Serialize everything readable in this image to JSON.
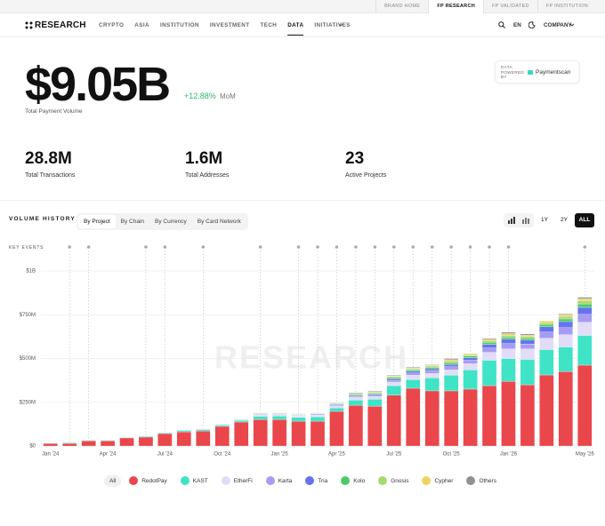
{
  "top_links": [
    "BRAND HOME",
    "FP RESEARCH",
    "FP VALIDATED",
    "FP INSTITUTION"
  ],
  "nav": {
    "logo": "RESEARCH",
    "items": [
      "CRYPTO",
      "ASIA",
      "INSTITUTION",
      "INVESTMENT",
      "TECH",
      "DATA",
      "INITIATIVES"
    ],
    "lang": "EN",
    "company": "COMPANY"
  },
  "hero": {
    "value": "$9.05B",
    "change": "+12.88%",
    "period": "MoM",
    "label": "Total Payment Volume",
    "powered": "DATA POWERED BY",
    "provider": "Paymentscan"
  },
  "stats": [
    {
      "value": "28.8M",
      "label": "Total Transactions"
    },
    {
      "value": "1.6M",
      "label": "Total Addresses"
    },
    {
      "value": "23",
      "label": "Active Projects"
    }
  ],
  "section": {
    "title": "VOLUME HISTORY",
    "tabs": [
      "By Project",
      "By Chain",
      "By Currency",
      "By Card Network"
    ],
    "ranges": [
      "1Y",
      "2Y",
      "ALL"
    ],
    "key_events": "KEY EVENTS",
    "watermark": "RESEARCH",
    "filter_all": "All"
  },
  "chart_data": {
    "type": "stacked_bar",
    "categories": [
      "Jan '24",
      null,
      null,
      "Apr '24",
      null,
      null,
      "Jul '24",
      null,
      null,
      "Oct '24",
      null,
      null,
      "Jan '25",
      null,
      null,
      "Apr '25",
      null,
      null,
      "Jul '25",
      null,
      null,
      "Oct '25",
      null,
      null,
      "Jan '26",
      null,
      null,
      null,
      "May '26"
    ],
    "ylim": [
      0,
      1000
    ],
    "yticks": [
      {
        "value": 0,
        "label": "$0"
      },
      {
        "value": 250,
        "label": "$250M"
      },
      {
        "value": 500,
        "label": "$500M"
      },
      {
        "value": 750,
        "label": "$750M"
      },
      {
        "value": 1000,
        "label": "$1B"
      }
    ],
    "grid": true,
    "series": [
      {
        "name": "RedotPay",
        "color": "#e9474b",
        "values": [
          15,
          15,
          30,
          30,
          46,
          51,
          71,
          81,
          86,
          112,
          137,
          152,
          152,
          142,
          142,
          198,
          233,
          228,
          290,
          330,
          315,
          315,
          325,
          345,
          370,
          350,
          406,
          426,
          462
        ]
      },
      {
        "name": "KAST",
        "color": "#3fe3c6",
        "values": [
          2,
          4,
          3,
          3,
          3,
          5,
          5,
          8,
          8,
          8,
          10,
          18,
          20,
          22,
          25,
          20,
          30,
          40,
          55,
          50,
          75,
          90,
          110,
          145,
          130,
          145,
          145,
          140,
          170
        ]
      },
      {
        "name": "EtherFi",
        "color": "#e2dcf7",
        "values": [
          1,
          2,
          1,
          1,
          1,
          2,
          2,
          3,
          3,
          3,
          4,
          8,
          8,
          8,
          10,
          12,
          14,
          15,
          20,
          25,
          25,
          30,
          35,
          45,
          55,
          60,
          65,
          70,
          75
        ]
      },
      {
        "name": "Karta",
        "color": "#a89cf2",
        "values": [
          0,
          1,
          0,
          0,
          0,
          0,
          1,
          1,
          1,
          1,
          2,
          3,
          3,
          3,
          4,
          5,
          6,
          8,
          10,
          12,
          15,
          18,
          20,
          25,
          30,
          28,
          35,
          40,
          45
        ]
      },
      {
        "name": "Tria",
        "color": "#6673ee",
        "values": [
          0,
          0,
          0,
          0,
          0,
          0,
          0,
          1,
          1,
          1,
          1,
          2,
          2,
          2,
          3,
          4,
          5,
          5,
          8,
          10,
          10,
          12,
          14,
          20,
          25,
          22,
          30,
          35,
          40
        ]
      },
      {
        "name": "Kolo",
        "color": "#4cc96b",
        "values": [
          1,
          1,
          1,
          1,
          0,
          1,
          1,
          1,
          1,
          1,
          2,
          3,
          3,
          3,
          3,
          4,
          5,
          6,
          8,
          8,
          9,
          10,
          10,
          12,
          12,
          12,
          14,
          15,
          20
        ]
      },
      {
        "name": "Gnosis",
        "color": "#a7d96f",
        "values": [
          1,
          1,
          0,
          0,
          0,
          1,
          0,
          0,
          0,
          0,
          1,
          2,
          1,
          2,
          1,
          3,
          5,
          5,
          6,
          6,
          8,
          10,
          8,
          10,
          10,
          8,
          10,
          14,
          18
        ]
      },
      {
        "name": "Cypher",
        "color": "#f0d361",
        "values": [
          0,
          1,
          0,
          0,
          0,
          0,
          0,
          0,
          0,
          0,
          0,
          1,
          1,
          1,
          1,
          2,
          3,
          4,
          4,
          5,
          5,
          8,
          6,
          8,
          10,
          8,
          10,
          10,
          12
        ]
      },
      {
        "name": "Others",
        "color": "#8f9196",
        "values": [
          0,
          0,
          0,
          0,
          0,
          0,
          0,
          0,
          0,
          0,
          0,
          1,
          0,
          2,
          1,
          2,
          4,
          4,
          4,
          4,
          3,
          7,
          2,
          5,
          8,
          7,
          0,
          5,
          8
        ]
      }
    ]
  }
}
